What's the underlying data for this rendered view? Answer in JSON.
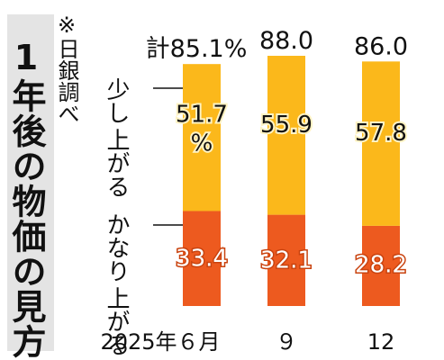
{
  "title": "1年後の物価の見方",
  "source_note": "※日銀調べ",
  "colors": {
    "little": "#fbb81b",
    "much": "#ed5a1f",
    "value_text_little": "#111111",
    "value_text_much": "#ffffff",
    "panel": "#e4e4e4"
  },
  "chart_data": {
    "type": "bar",
    "stacked": true,
    "categories": [
      "2025年６月",
      "９",
      "12"
    ],
    "totals": [
      "計85.1%",
      "88.0",
      "86.0"
    ],
    "total_values": [
      85.1,
      88.0,
      86.0
    ],
    "series": [
      {
        "name": "かなり上がる",
        "name_lines": [
          "かなり",
          "上がる"
        ],
        "values": [
          33.4,
          32.1,
          28.2
        ],
        "labels": [
          "33.4",
          "32.1",
          "28.2"
        ]
      },
      {
        "name": "少し上がる",
        "name_lines": [
          "少し",
          "上がる"
        ],
        "values": [
          51.7,
          55.9,
          57.8
        ],
        "labels": [
          "51.7\n%",
          "55.9",
          "57.8"
        ]
      }
    ],
    "unit": "%",
    "ylim": [
      0,
      88
    ],
    "grid": false,
    "legend": "left"
  }
}
